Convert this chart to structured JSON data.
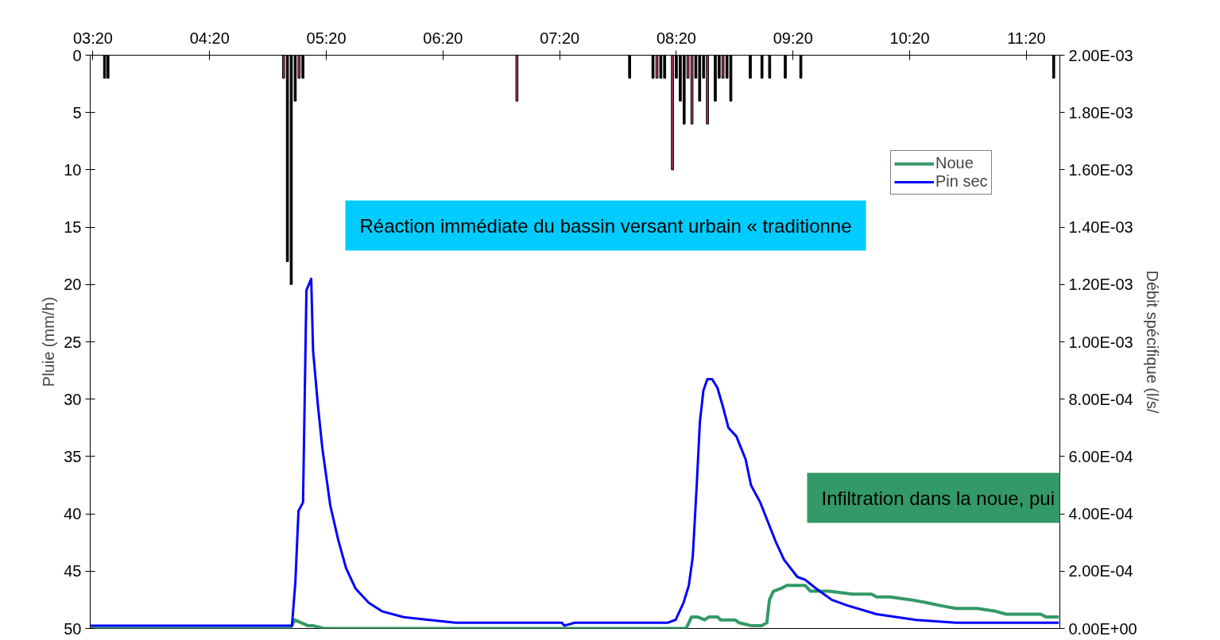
{
  "chart_data": {
    "type": "bar",
    "ylabel": "Pluie (mm/h)",
    "y2label": "Débit spécifique (l/s/",
    "xlim": [
      3.31,
      11.62
    ],
    "xticks": [
      {
        "value": 3.3333,
        "label": "03:20"
      },
      {
        "value": 4.3333,
        "label": "04:20"
      },
      {
        "value": 5.3333,
        "label": "05:20"
      },
      {
        "value": 6.3333,
        "label": "06:20"
      },
      {
        "value": 7.3333,
        "label": "07:20"
      },
      {
        "value": 8.3333,
        "label": "08:20"
      },
      {
        "value": 9.3333,
        "label": "09:20"
      },
      {
        "value": 10.3333,
        "label": "10:20"
      },
      {
        "value": 11.3333,
        "label": "11:20"
      }
    ],
    "ylim": [
      50,
      0
    ],
    "yticks": [
      0,
      5,
      10,
      15,
      20,
      25,
      30,
      35,
      40,
      45,
      50
    ],
    "y2lim": [
      0,
      0.002
    ],
    "y2ticks": [
      {
        "value": 0,
        "label": "0.00E+00"
      },
      {
        "value": 0.0002,
        "label": "2.00E-04"
      },
      {
        "value": 0.0004,
        "label": "4.00E-04"
      },
      {
        "value": 0.0006,
        "label": "6.00E-04"
      },
      {
        "value": 0.0008,
        "label": "8.00E-04"
      },
      {
        "value": 0.001,
        "label": "1.00E-03"
      },
      {
        "value": 0.0012,
        "label": "1.20E-03"
      },
      {
        "value": 0.0014,
        "label": "1.40E-03"
      },
      {
        "value": 0.0016,
        "label": "1.60E-03"
      },
      {
        "value": 0.0018,
        "label": "1.80E-03"
      },
      {
        "value": 0.002,
        "label": "2.00E-03"
      }
    ],
    "grid": false,
    "legend": "top right",
    "annotations": [
      "Réaction immédiate du bassin versant urbain « traditionne",
      "Infiltration dans la noue, pui"
    ],
    "series": [
      {
        "axis": "y",
        "x": [
          3.433,
          3.462,
          4.967,
          5.0,
          5.033,
          5.067,
          5.1,
          5.133,
          6.967,
          7.933,
          8.133,
          8.167,
          8.2,
          8.233,
          8.3,
          8.333,
          8.367,
          8.4,
          8.433,
          8.467,
          8.5,
          8.533,
          8.567,
          8.6,
          8.667,
          8.7,
          8.733,
          8.767,
          8.8,
          8.967,
          9.067,
          9.133,
          9.267,
          9.4,
          11.567
        ],
        "values": [
          2,
          2,
          2,
          18,
          20,
          4,
          2,
          2,
          4,
          2,
          2,
          2,
          2,
          2,
          10,
          2,
          4,
          6,
          2,
          6,
          2,
          4,
          2,
          6,
          4,
          2,
          2,
          2,
          4,
          2,
          2,
          2,
          2,
          2,
          2
        ],
        "colors": [
          "#000000",
          "#000000",
          "#b03060",
          "#000000",
          "#000000",
          "#000000",
          "#b03060",
          "#000000",
          "#b03060",
          "#000000",
          "#000000",
          "#b03060",
          "#000000",
          "#000000",
          "#b03060",
          "#000000",
          "#000000",
          "#000000",
          "#b03060",
          "#b03060",
          "#000000",
          "#000000",
          "#000000",
          "#b03060",
          "#000000",
          "#000000",
          "#b03060",
          "#000000",
          "#000000",
          "#000000",
          "#000000",
          "#000000",
          "#000000",
          "#000000",
          "#000000"
        ]
      },
      {
        "type": "line",
        "axis": "y2",
        "name": "Noue",
        "color": "#339966",
        "x": [
          3.313,
          5.027,
          5.061,
          5.175,
          5.22,
          5.311,
          8.417,
          8.463,
          8.519,
          8.576,
          8.61,
          8.689,
          8.712,
          8.837,
          8.871,
          8.973,
          9.063,
          9.109,
          9.131,
          9.165,
          9.233,
          9.279,
          9.324,
          9.437,
          9.483,
          9.596,
          9.641,
          9.845,
          10.005,
          10.05,
          10.163,
          10.345,
          10.48,
          10.594,
          10.73,
          10.912,
          11.07,
          11.161,
          11.456,
          11.501,
          11.612
        ],
        "values": [
          0,
          0,
          3e-05,
          1e-05,
          1e-05,
          0,
          0,
          4e-05,
          4e-05,
          3e-05,
          4e-05,
          4e-05,
          3e-05,
          3e-05,
          2e-05,
          1e-05,
          1e-05,
          2e-05,
          0.0001,
          0.00013,
          0.00014,
          0.00015,
          0.00015,
          0.00015,
          0.00013,
          0.00013,
          0.00013,
          0.00012,
          0.00012,
          0.00011,
          0.00011,
          0.0001,
          9e-05,
          8e-05,
          7e-05,
          7e-05,
          6e-05,
          5e-05,
          5e-05,
          4e-05,
          4e-05
        ]
      },
      {
        "type": "line",
        "axis": "y2",
        "name": "Pin sec",
        "color": "#0000ff",
        "x": [
          3.313,
          5.027,
          5.039,
          5.068,
          5.095,
          5.134,
          5.163,
          5.204,
          5.22,
          5.261,
          5.299,
          5.367,
          5.435,
          5.503,
          5.583,
          5.696,
          5.81,
          5.991,
          6.218,
          6.442,
          6.762,
          7.352,
          7.374,
          7.463,
          7.986,
          8.259,
          8.327,
          8.395,
          8.44,
          8.474,
          8.508,
          8.535,
          8.565,
          8.599,
          8.64,
          8.685,
          8.735,
          8.78,
          8.848,
          8.927,
          8.973,
          9.052,
          9.12,
          9.188,
          9.256,
          9.37,
          9.437,
          9.529,
          9.665,
          9.801,
          10.05,
          10.39,
          10.73,
          11.612
        ],
        "values": [
          1e-05,
          1e-05,
          1e-05,
          0.00016,
          0.00041,
          0.00044,
          0.00118,
          0.00122,
          0.00097,
          0.00078,
          0.00063,
          0.00043,
          0.00031,
          0.00021,
          0.00014,
          9e-05,
          6e-05,
          4e-05,
          3e-05,
          2e-05,
          2e-05,
          2e-05,
          1e-05,
          2e-05,
          2e-05,
          2e-05,
          3e-05,
          9e-05,
          0.00015,
          0.00025,
          0.0005,
          0.00072,
          0.00083,
          0.00087,
          0.00087,
          0.00084,
          0.00077,
          0.0007,
          0.00067,
          0.00059,
          0.0005,
          0.00044,
          0.00037,
          0.0003,
          0.00024,
          0.00018,
          0.00017,
          0.00014,
          0.0001,
          8e-05,
          5e-05,
          3e-05,
          2e-05,
          2e-05
        ]
      }
    ]
  }
}
